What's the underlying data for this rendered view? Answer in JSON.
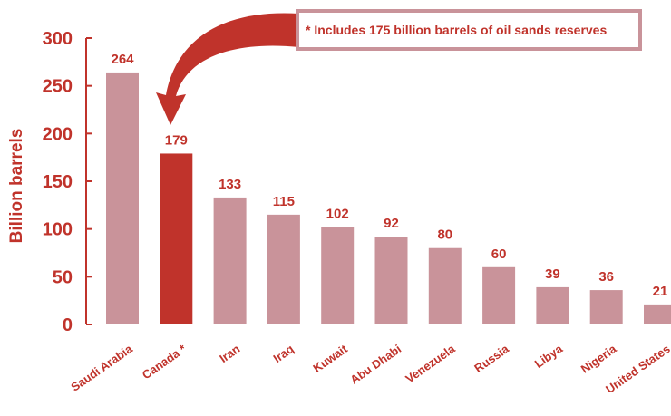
{
  "chart_data": {
    "type": "bar",
    "title": "",
    "xlabel": "",
    "ylabel": "Billion barrels",
    "ylim": [
      0,
      300
    ],
    "yticks": [
      0,
      50,
      100,
      150,
      200,
      250,
      300
    ],
    "grid": false,
    "legend": "none",
    "categories": [
      "Saudi Arabia",
      "Canada *",
      "Iran",
      "Iraq",
      "Kuwait",
      "Abu Dhabi",
      "Venezuela",
      "Russia",
      "Libya",
      "Nigeria",
      "United States"
    ],
    "values": [
      264,
      179,
      133,
      115,
      102,
      92,
      80,
      60,
      39,
      36,
      21
    ],
    "highlight_index": 1,
    "annotation": "* Includes 175 billion barrels of oil sands reserves",
    "colors": {
      "bar": "#c9939a",
      "highlight": "#c0332b",
      "text": "#c0332b",
      "axis": "#c0332b",
      "note_border": "#c9939a"
    }
  }
}
